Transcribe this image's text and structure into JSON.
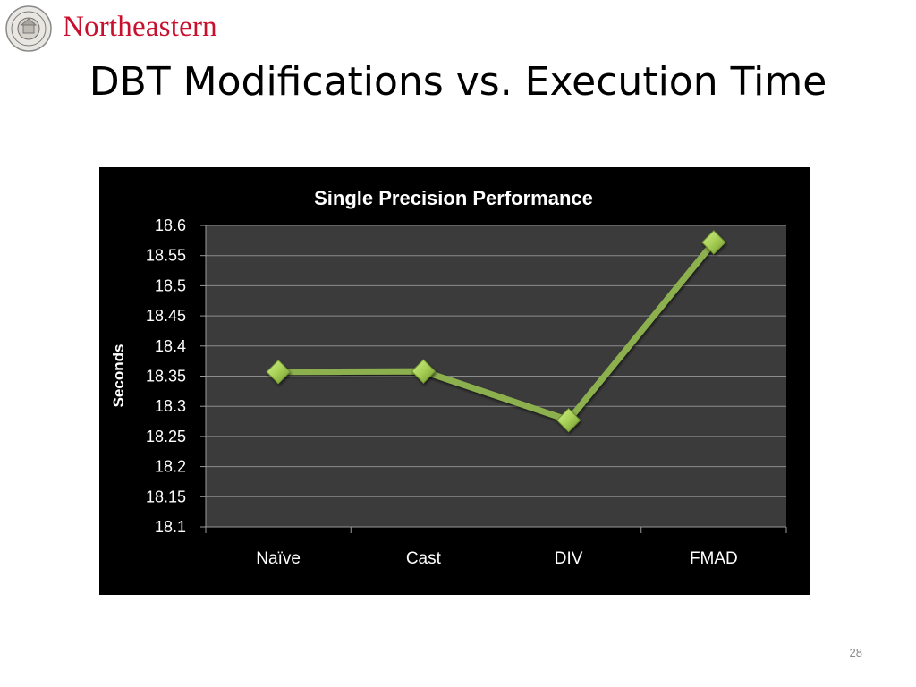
{
  "slide": {
    "brand_name": "Northeastern",
    "title": "DBT Modifications vs. Execution Time",
    "page_number": "28"
  },
  "logo": {
    "icon": "university-seal-icon"
  },
  "colors": {
    "brand": "#c8102e",
    "chart_background": "#000000",
    "plot_area": "#3b3b3b",
    "line": "#8db04f",
    "marker": "#a7cf55"
  },
  "chart_data": {
    "type": "line",
    "title": "Single Precision Performance",
    "xlabel": "",
    "ylabel": "Seconds",
    "categories": [
      "Naïve",
      "Cast",
      "DIV",
      "FMAD"
    ],
    "series": [
      {
        "values": [
          18.357,
          18.358,
          18.277,
          18.572
        ]
      }
    ],
    "ylim": [
      18.1,
      18.6
    ],
    "yticks": [
      "18.1",
      "18.15",
      "18.2",
      "18.25",
      "18.3",
      "18.35",
      "18.4",
      "18.45",
      "18.5",
      "18.55",
      "18.6"
    ],
    "grid": true,
    "legend": "none",
    "marker": "diamond"
  }
}
